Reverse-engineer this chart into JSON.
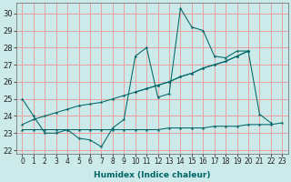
{
  "xlabel": "Humidex (Indice chaleur)",
  "bg_color": "#cceaea",
  "grid_color": "#e8a0a0",
  "line_color": "#006666",
  "xlim": [
    -0.5,
    23.5
  ],
  "ylim": [
    21.8,
    30.6
  ],
  "xticks": [
    0,
    1,
    2,
    3,
    4,
    5,
    6,
    7,
    8,
    9,
    10,
    11,
    12,
    13,
    14,
    15,
    16,
    17,
    18,
    19,
    20,
    21,
    22,
    23
  ],
  "yticks": [
    22,
    23,
    24,
    25,
    26,
    27,
    28,
    29,
    30
  ],
  "series1_y": [
    25.0,
    24.0,
    23.0,
    23.0,
    23.2,
    22.7,
    22.6,
    22.2,
    23.3,
    23.8,
    27.5,
    28.0,
    25.1,
    25.3,
    30.3,
    29.2,
    29.0,
    27.5,
    27.4,
    27.8,
    27.8,
    24.1,
    23.6,
    null
  ],
  "series2_y": [
    23.2,
    23.2,
    23.2,
    23.2,
    23.2,
    23.2,
    23.2,
    23.2,
    23.2,
    23.2,
    23.2,
    23.2,
    23.2,
    23.3,
    23.3,
    23.3,
    23.3,
    23.4,
    23.4,
    23.4,
    23.5,
    23.5,
    23.5,
    23.6
  ],
  "series3_y": [
    null,
    null,
    null,
    null,
    null,
    null,
    null,
    null,
    null,
    null,
    25.4,
    25.6,
    25.8,
    26.0,
    26.3,
    26.5,
    26.8,
    27.0,
    27.2,
    27.5,
    27.8,
    null,
    null,
    null
  ],
  "series4_y": [
    23.5,
    23.8,
    24.0,
    24.2,
    24.4,
    24.6,
    24.7,
    24.8,
    25.0,
    25.2,
    25.4,
    25.6,
    25.8,
    26.0,
    26.3,
    26.5,
    26.8,
    27.0,
    27.2,
    27.5,
    27.8,
    null,
    null,
    null
  ],
  "xtick_fontsize": 5.5,
  "ytick_fontsize": 6.0,
  "xlabel_fontsize": 6.5
}
